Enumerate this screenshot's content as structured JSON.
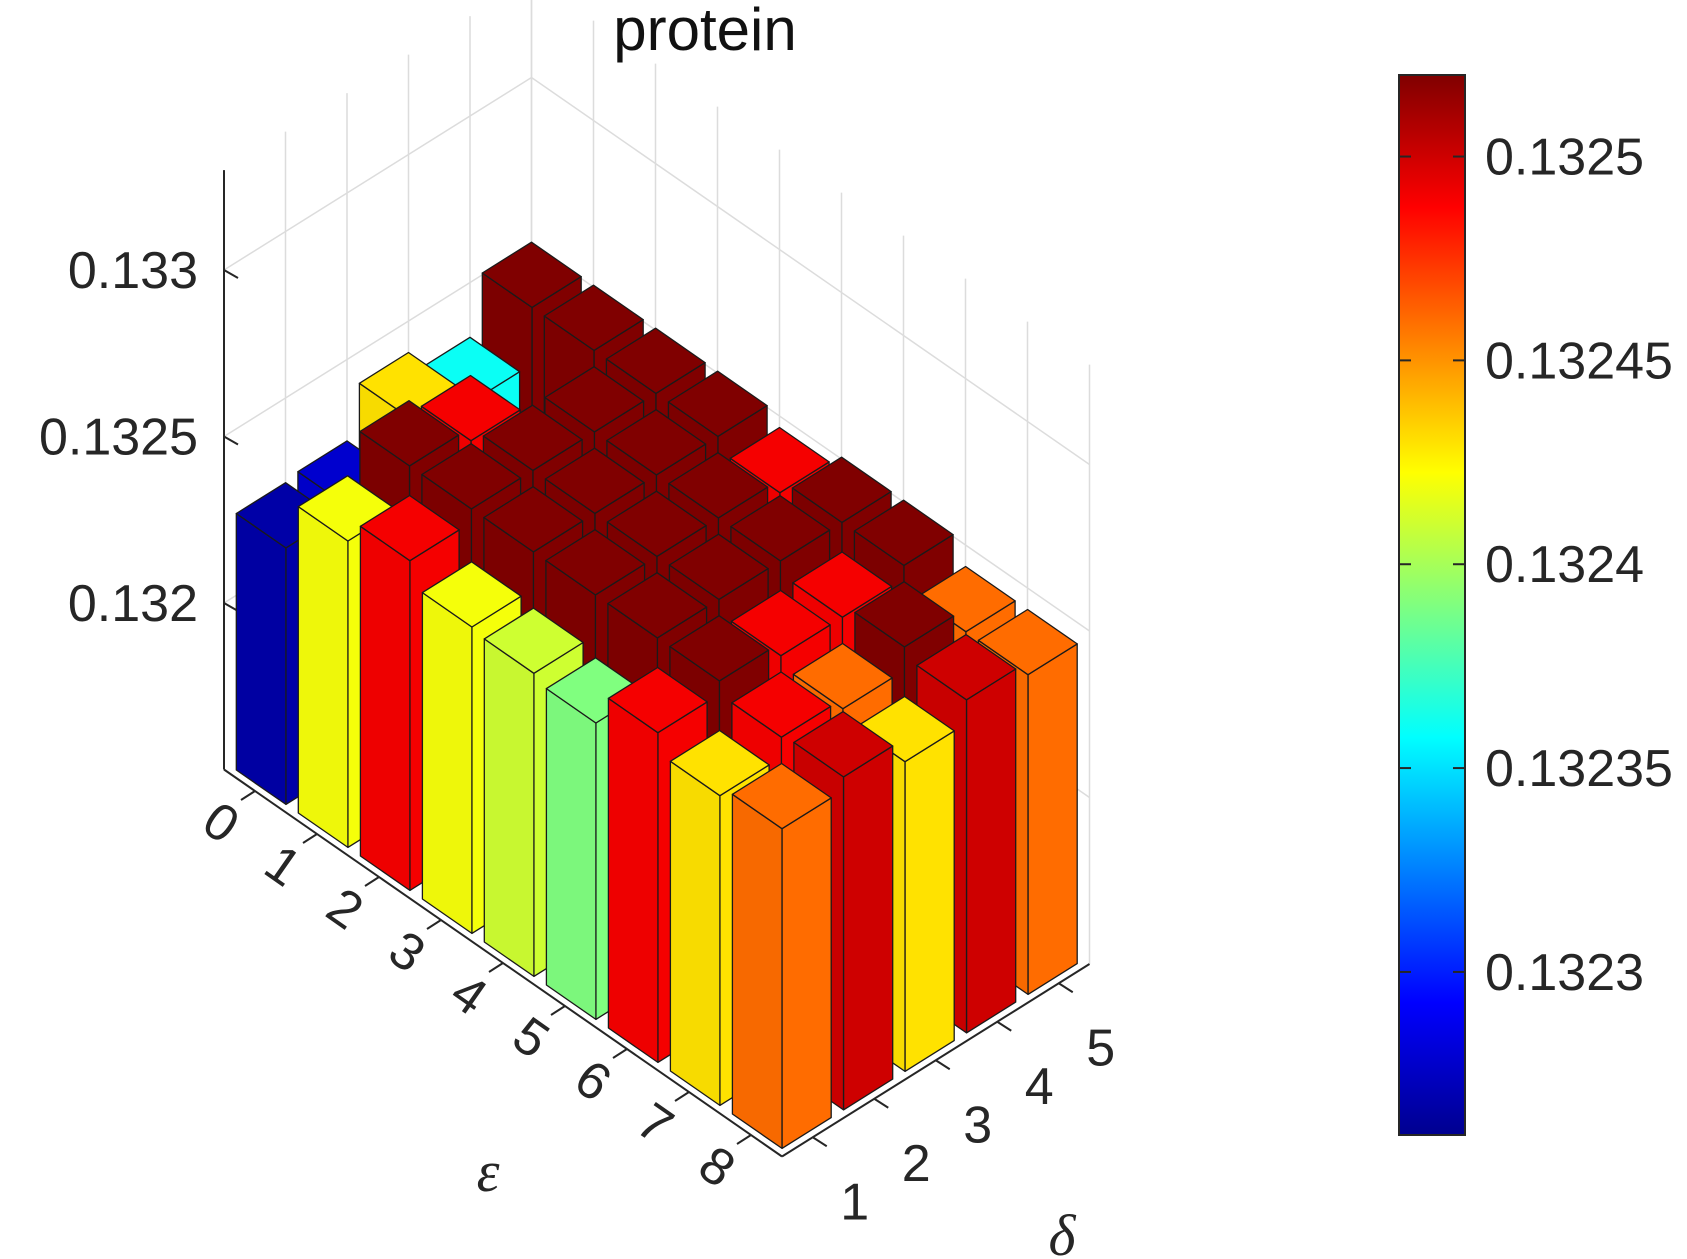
{
  "chart_data": {
    "type": "bar3d",
    "title": "protein",
    "xlabel": "ε",
    "ylabel": "δ",
    "zlabel": "",
    "x_categories": [
      "0",
      "1",
      "2",
      "3",
      "4",
      "5",
      "6",
      "7",
      "8"
    ],
    "y_categories": [
      "1",
      "2",
      "3",
      "4",
      "5"
    ],
    "zlim": [
      0.1315,
      0.1333
    ],
    "z_ticks": [
      {
        "value": 0.132,
        "label": "0.132"
      },
      {
        "value": 0.1325,
        "label": "0.1325"
      },
      {
        "value": 0.133,
        "label": "0.133"
      }
    ],
    "grid": true,
    "colormap": "jet",
    "clim": [
      0.13226,
      0.13252
    ],
    "colorbar_ticks": [
      {
        "value": 0.1323,
        "label": "0.1323"
      },
      {
        "value": 0.13235,
        "label": "0.13235"
      },
      {
        "value": 0.1324,
        "label": "0.1324"
      },
      {
        "value": 0.13245,
        "label": "0.13245"
      },
      {
        "value": 0.1325,
        "label": "0.1325"
      }
    ],
    "values": [
      [
        0.13227,
        0.13228,
        0.13243,
        0.13236,
        0.13253
      ],
      [
        0.13242,
        0.13253,
        0.13249,
        0.13228,
        0.13253
      ],
      [
        0.13249,
        0.13253,
        0.13253,
        0.13253,
        0.13253
      ],
      [
        0.13242,
        0.13253,
        0.13253,
        0.13253,
        0.13253
      ],
      [
        0.13241,
        0.13253,
        0.13253,
        0.13253,
        0.13249
      ],
      [
        0.13239,
        0.13253,
        0.13253,
        0.13253,
        0.13253
      ],
      [
        0.13249,
        0.13253,
        0.13249,
        0.13249,
        0.13253
      ],
      [
        0.13243,
        0.13249,
        0.13246,
        0.13253,
        0.13246
      ],
      [
        0.13246,
        0.1325,
        0.13243,
        0.1325,
        0.13246
      ]
    ]
  }
}
